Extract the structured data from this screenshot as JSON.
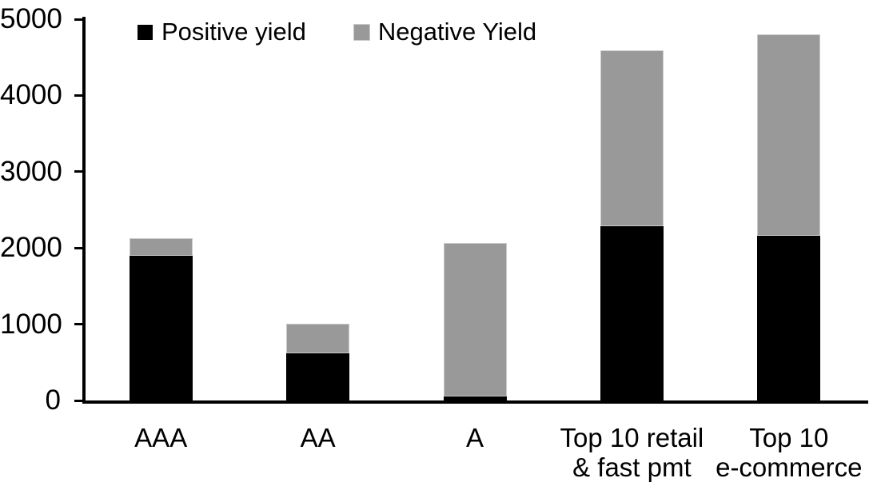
{
  "colors": {
    "background": "#ffffff",
    "axis": "#000000",
    "positive_series": "#000000",
    "negative_series": "#999999"
  },
  "legend": {
    "position": "top",
    "items": [
      {
        "label": "Positive yield",
        "swatch": "black-square"
      },
      {
        "label": "Negative Yield",
        "swatch": "gray-square"
      }
    ]
  },
  "chart_data": {
    "type": "bar",
    "stacked": true,
    "title": "",
    "xlabel": "",
    "ylabel": "",
    "grid": false,
    "legend_position": "top",
    "ylim": [
      0,
      5000
    ],
    "yticks": [
      0,
      1000,
      2000,
      3000,
      4000,
      5000
    ],
    "categories": [
      "AAA",
      "AA",
      "A",
      "Top 10 retail & fast pmt",
      "Top 10 e-commerce"
    ],
    "category_label_lines": [
      [
        "AAA"
      ],
      [
        "AA"
      ],
      [
        "A"
      ],
      [
        "Top 10 retail",
        "& fast pmt"
      ],
      [
        "Top 10",
        "e-commerce"
      ]
    ],
    "series": [
      {
        "name": "Positive yield",
        "color": "#000000",
        "values": [
          1900,
          620,
          50,
          2290,
          2160
        ]
      },
      {
        "name": "Negative Yield",
        "color": "#999999",
        "values": [
          230,
          390,
          2010,
          2300,
          2640
        ]
      }
    ],
    "stacked_totals": [
      2130,
      1010,
      2060,
      4590,
      4800
    ]
  }
}
